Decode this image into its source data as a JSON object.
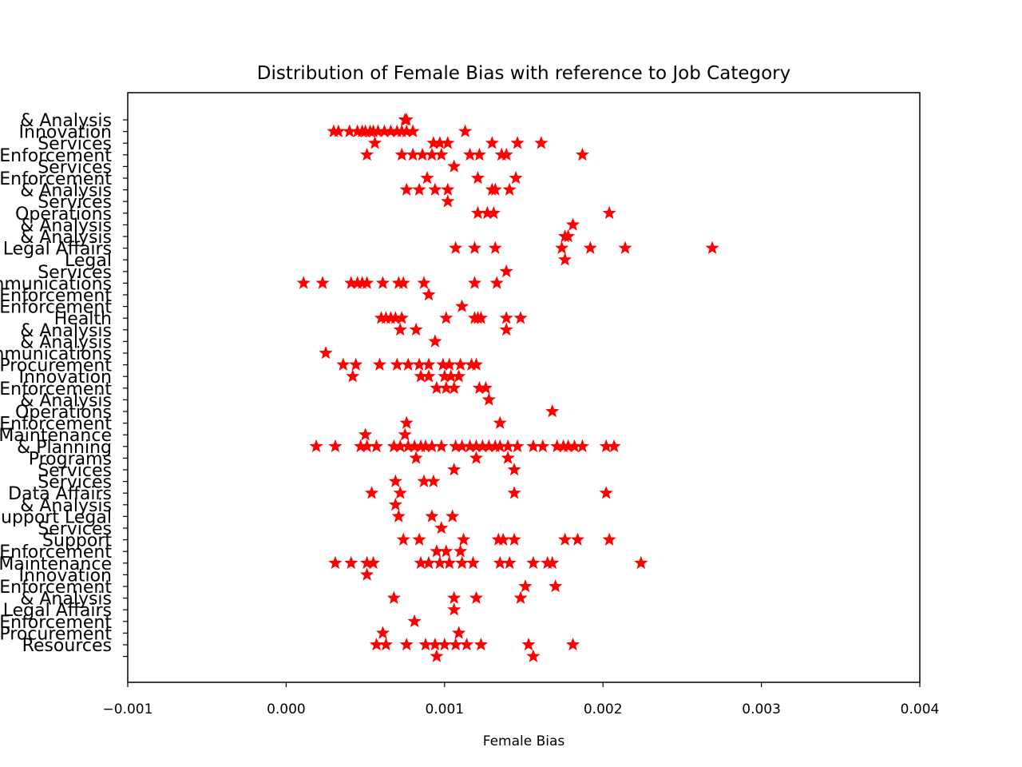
{
  "chart_data": {
    "type": "scatter",
    "title": "Distribution of Female Bias with reference to Job Category",
    "xlabel": "Female Bias",
    "ylabel": "",
    "xlim": [
      -0.001,
      0.004
    ],
    "xticks": [
      "−0.001",
      "0.000",
      "0.001",
      "0.002",
      "0.003",
      "0.004"
    ],
    "grid": false,
    "marker": "star",
    "color": "#ff0000",
    "categories": [
      "& Analysis",
      "Innovation",
      "Services",
      "Enforcement",
      "Services",
      "Enforcement",
      "& Analysis",
      "Services",
      "Operations",
      "& Analysis",
      "& Analysis",
      "Legal Affairs",
      "Legal",
      "Services",
      "Communications",
      "Enforcement",
      "Enforcement",
      "Health",
      "& Analysis",
      "& Analysis",
      "Communications",
      "Procurement",
      "Innovation",
      "Enforcement",
      "& Analysis",
      "Operations",
      "Enforcement",
      "Maintenance",
      "& Planning",
      "Programs",
      "Services",
      "Services",
      "Data Affairs",
      "& Analysis",
      "Support Legal",
      "Services",
      "Support",
      "Enforcement",
      "Maintenance",
      "Innovation",
      "Enforcement",
      "& Analysis",
      "Legal Affairs",
      "Enforcement",
      "Procurement",
      "Resources",
      ""
    ],
    "points": [
      [
        0.00075,
        0
      ],
      [
        0.00076,
        0
      ],
      [
        0.0003,
        1
      ],
      [
        0.00033,
        1
      ],
      [
        0.0004,
        1
      ],
      [
        0.00045,
        1
      ],
      [
        0.00048,
        1
      ],
      [
        0.0005,
        1
      ],
      [
        0.00053,
        1
      ],
      [
        0.00055,
        1
      ],
      [
        0.00058,
        1
      ],
      [
        0.00062,
        1
      ],
      [
        0.00066,
        1
      ],
      [
        0.0007,
        1
      ],
      [
        0.00073,
        1
      ],
      [
        0.00076,
        1
      ],
      [
        0.0008,
        1
      ],
      [
        0.00113,
        1
      ],
      [
        0.00056,
        2
      ],
      [
        0.00093,
        2
      ],
      [
        0.00097,
        2
      ],
      [
        0.00102,
        2
      ],
      [
        0.0013,
        2
      ],
      [
        0.00146,
        2
      ],
      [
        0.00161,
        2
      ],
      [
        0.00051,
        3
      ],
      [
        0.00073,
        3
      ],
      [
        0.0008,
        3
      ],
      [
        0.00086,
        3
      ],
      [
        0.00092,
        3
      ],
      [
        0.00098,
        3
      ],
      [
        0.00116,
        3
      ],
      [
        0.00122,
        3
      ],
      [
        0.00136,
        3
      ],
      [
        0.00139,
        3
      ],
      [
        0.00187,
        3
      ],
      [
        0.00106,
        4
      ],
      [
        0.00089,
        5
      ],
      [
        0.00121,
        5
      ],
      [
        0.00145,
        5
      ],
      [
        0.00076,
        6
      ],
      [
        0.00084,
        6
      ],
      [
        0.00094,
        6
      ],
      [
        0.00102,
        6
      ],
      [
        0.0013,
        6
      ],
      [
        0.00132,
        6
      ],
      [
        0.00141,
        6
      ],
      [
        0.00102,
        7
      ],
      [
        0.00121,
        8
      ],
      [
        0.00127,
        8
      ],
      [
        0.00131,
        8
      ],
      [
        0.00204,
        8
      ],
      [
        0.00181,
        9
      ],
      [
        0.00178,
        10
      ],
      [
        0.00176,
        10
      ],
      [
        0.00107,
        11
      ],
      [
        0.00119,
        11
      ],
      [
        0.00132,
        11
      ],
      [
        0.00174,
        11
      ],
      [
        0.00192,
        11
      ],
      [
        0.00214,
        11
      ],
      [
        0.00269,
        11
      ],
      [
        0.00176,
        12
      ],
      [
        0.00139,
        13
      ],
      [
        0.00011,
        14
      ],
      [
        0.00023,
        14
      ],
      [
        0.00041,
        14
      ],
      [
        0.00045,
        14
      ],
      [
        0.00048,
        14
      ],
      [
        0.00051,
        14
      ],
      [
        0.00061,
        14
      ],
      [
        0.00071,
        14
      ],
      [
        0.00074,
        14
      ],
      [
        0.00087,
        14
      ],
      [
        0.00119,
        14
      ],
      [
        0.00133,
        14
      ],
      [
        0.0009,
        15
      ],
      [
        0.00111,
        16
      ],
      [
        0.0006,
        17
      ],
      [
        0.00063,
        17
      ],
      [
        0.00066,
        17
      ],
      [
        0.00069,
        17
      ],
      [
        0.00073,
        17
      ],
      [
        0.00101,
        17
      ],
      [
        0.00119,
        17
      ],
      [
        0.00121,
        17
      ],
      [
        0.00123,
        17
      ],
      [
        0.00139,
        17
      ],
      [
        0.00148,
        17
      ],
      [
        0.00072,
        18
      ],
      [
        0.00082,
        18
      ],
      [
        0.00139,
        18
      ],
      [
        0.00094,
        19
      ],
      [
        0.00025,
        20
      ],
      [
        0.00036,
        21
      ],
      [
        0.00044,
        21
      ],
      [
        0.00059,
        21
      ],
      [
        0.0007,
        21
      ],
      [
        0.00077,
        21
      ],
      [
        0.00084,
        21
      ],
      [
        0.0009,
        21
      ],
      [
        0.00099,
        21
      ],
      [
        0.00103,
        21
      ],
      [
        0.0011,
        21
      ],
      [
        0.00117,
        21
      ],
      [
        0.0012,
        21
      ],
      [
        0.00042,
        22
      ],
      [
        0.00085,
        22
      ],
      [
        0.0009,
        22
      ],
      [
        0.001,
        22
      ],
      [
        0.00104,
        22
      ],
      [
        0.00109,
        22
      ],
      [
        0.00095,
        23
      ],
      [
        0.00101,
        23
      ],
      [
        0.00106,
        23
      ],
      [
        0.00122,
        23
      ],
      [
        0.00126,
        23
      ],
      [
        0.00128,
        24
      ],
      [
        0.00168,
        25
      ],
      [
        0.00076,
        26
      ],
      [
        0.00135,
        26
      ],
      [
        0.0005,
        27
      ],
      [
        0.00075,
        27
      ],
      [
        0.00019,
        28
      ],
      [
        0.00031,
        28
      ],
      [
        0.00047,
        28
      ],
      [
        0.00051,
        28
      ],
      [
        0.00057,
        28
      ],
      [
        0.00068,
        28
      ],
      [
        0.00072,
        28
      ],
      [
        0.00077,
        28
      ],
      [
        0.00081,
        28
      ],
      [
        0.00085,
        28
      ],
      [
        0.00088,
        28
      ],
      [
        0.00092,
        28
      ],
      [
        0.00098,
        28
      ],
      [
        0.00107,
        28
      ],
      [
        0.00111,
        28
      ],
      [
        0.00116,
        28
      ],
      [
        0.0012,
        28
      ],
      [
        0.00124,
        28
      ],
      [
        0.00128,
        28
      ],
      [
        0.00132,
        28
      ],
      [
        0.00135,
        28
      ],
      [
        0.0014,
        28
      ],
      [
        0.00146,
        28
      ],
      [
        0.00156,
        28
      ],
      [
        0.00162,
        28
      ],
      [
        0.00171,
        28
      ],
      [
        0.00175,
        28
      ],
      [
        0.00178,
        28
      ],
      [
        0.00182,
        28
      ],
      [
        0.00187,
        28
      ],
      [
        0.00202,
        28
      ],
      [
        0.00207,
        28
      ],
      [
        0.00082,
        29
      ],
      [
        0.0012,
        29
      ],
      [
        0.0014,
        29
      ],
      [
        0.00106,
        30
      ],
      [
        0.00144,
        30
      ],
      [
        0.00069,
        31
      ],
      [
        0.00087,
        31
      ],
      [
        0.00093,
        31
      ],
      [
        0.00054,
        32
      ],
      [
        0.00072,
        32
      ],
      [
        0.00144,
        32
      ],
      [
        0.00202,
        32
      ],
      [
        0.00069,
        33
      ],
      [
        0.00071,
        34
      ],
      [
        0.00092,
        34
      ],
      [
        0.00105,
        34
      ],
      [
        0.00098,
        35
      ],
      [
        0.00074,
        36
      ],
      [
        0.00084,
        36
      ],
      [
        0.00112,
        36
      ],
      [
        0.00134,
        36
      ],
      [
        0.00137,
        36
      ],
      [
        0.00144,
        36
      ],
      [
        0.00176,
        36
      ],
      [
        0.00184,
        36
      ],
      [
        0.00204,
        36
      ],
      [
        0.00095,
        37
      ],
      [
        0.00101,
        37
      ],
      [
        0.0011,
        37
      ],
      [
        0.00031,
        38
      ],
      [
        0.00041,
        38
      ],
      [
        0.00051,
        38
      ],
      [
        0.00055,
        38
      ],
      [
        0.00085,
        38
      ],
      [
        0.0009,
        38
      ],
      [
        0.00097,
        38
      ],
      [
        0.00103,
        38
      ],
      [
        0.00111,
        38
      ],
      [
        0.00118,
        38
      ],
      [
        0.00135,
        38
      ],
      [
        0.00141,
        38
      ],
      [
        0.00156,
        38
      ],
      [
        0.00165,
        38
      ],
      [
        0.00168,
        38
      ],
      [
        0.00224,
        38
      ],
      [
        0.00051,
        39
      ],
      [
        0.00151,
        40
      ],
      [
        0.0017,
        40
      ],
      [
        0.00068,
        41
      ],
      [
        0.00106,
        41
      ],
      [
        0.0012,
        41
      ],
      [
        0.00148,
        41
      ],
      [
        0.00106,
        42
      ],
      [
        0.00081,
        43
      ],
      [
        0.00061,
        44
      ],
      [
        0.00109,
        44
      ],
      [
        0.00057,
        45
      ],
      [
        0.00063,
        45
      ],
      [
        0.00076,
        45
      ],
      [
        0.00088,
        45
      ],
      [
        0.00094,
        45
      ],
      [
        0.001,
        45
      ],
      [
        0.00107,
        45
      ],
      [
        0.00114,
        45
      ],
      [
        0.00123,
        45
      ],
      [
        0.00153,
        45
      ],
      [
        0.00181,
        45
      ],
      [
        0.00095,
        46
      ],
      [
        0.00156,
        46
      ]
    ]
  }
}
